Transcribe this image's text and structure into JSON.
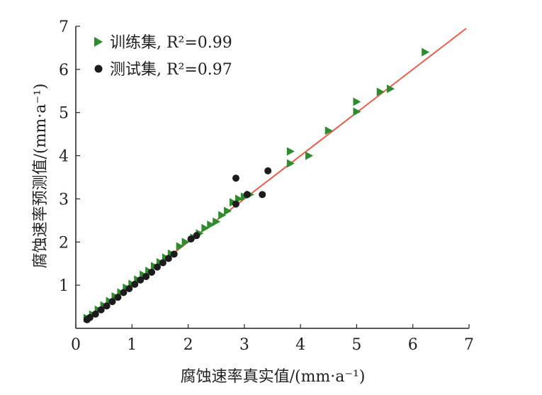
{
  "chart_data": {
    "type": "scatter",
    "xlabel": "腐蚀速率真实值/(mm·a⁻¹)",
    "ylabel": "腐蚀速率预测值/(mm·a⁻¹)",
    "xlim": [
      0,
      7
    ],
    "ylim": [
      0,
      7
    ],
    "xticks": [
      "0",
      "1",
      "2",
      "3",
      "4",
      "5",
      "6",
      "7"
    ],
    "yticks": [
      "1",
      "2",
      "3",
      "4",
      "5",
      "6",
      "7"
    ],
    "legend_position": "top-left",
    "fit_line": {
      "x": [
        0.15,
        6.95
      ],
      "y": [
        0.15,
        6.95
      ],
      "color": "#e8604c"
    },
    "series": [
      {
        "name": "训练集, R²=0.99",
        "marker": "triangle-right",
        "color": "#2e8b2e",
        "points": [
          [
            0.2,
            0.24
          ],
          [
            0.3,
            0.32
          ],
          [
            0.4,
            0.43
          ],
          [
            0.5,
            0.53
          ],
          [
            0.6,
            0.63
          ],
          [
            0.7,
            0.74
          ],
          [
            0.8,
            0.83
          ],
          [
            0.9,
            0.94
          ],
          [
            1.0,
            1.03
          ],
          [
            1.1,
            1.13
          ],
          [
            1.2,
            1.24
          ],
          [
            1.3,
            1.33
          ],
          [
            1.4,
            1.44
          ],
          [
            1.5,
            1.53
          ],
          [
            1.6,
            1.64
          ],
          [
            1.7,
            1.73
          ],
          [
            1.85,
            1.9
          ],
          [
            1.95,
            2.0
          ],
          [
            2.1,
            2.1
          ],
          [
            2.2,
            2.2
          ],
          [
            2.3,
            2.32
          ],
          [
            2.4,
            2.4
          ],
          [
            2.5,
            2.47
          ],
          [
            2.6,
            2.62
          ],
          [
            2.7,
            2.72
          ],
          [
            2.8,
            2.92
          ],
          [
            2.9,
            3.0
          ],
          [
            3.0,
            3.05
          ],
          [
            3.1,
            3.1
          ],
          [
            3.82,
            3.82
          ],
          [
            3.82,
            4.1
          ],
          [
            4.15,
            4.0
          ],
          [
            4.5,
            4.58
          ],
          [
            5.0,
            5.25
          ],
          [
            5.0,
            5.02
          ],
          [
            5.42,
            5.48
          ],
          [
            5.6,
            5.55
          ],
          [
            6.22,
            6.4
          ]
        ]
      },
      {
        "name": "测试集, R²=0.97",
        "marker": "circle",
        "color": "#1c1c1c",
        "points": [
          [
            0.2,
            0.2
          ],
          [
            0.25,
            0.25
          ],
          [
            0.35,
            0.33
          ],
          [
            0.45,
            0.43
          ],
          [
            0.55,
            0.52
          ],
          [
            0.65,
            0.62
          ],
          [
            0.75,
            0.72
          ],
          [
            0.85,
            0.83
          ],
          [
            0.95,
            0.92
          ],
          [
            1.05,
            1.02
          ],
          [
            1.15,
            1.12
          ],
          [
            1.25,
            1.2
          ],
          [
            1.35,
            1.3
          ],
          [
            1.45,
            1.42
          ],
          [
            1.55,
            1.52
          ],
          [
            1.65,
            1.62
          ],
          [
            1.75,
            1.72
          ],
          [
            2.05,
            2.07
          ],
          [
            2.15,
            2.15
          ],
          [
            2.85,
            2.88
          ],
          [
            2.85,
            3.48
          ],
          [
            3.05,
            3.1
          ],
          [
            3.32,
            3.1
          ],
          [
            3.42,
            3.65
          ]
        ]
      }
    ]
  }
}
